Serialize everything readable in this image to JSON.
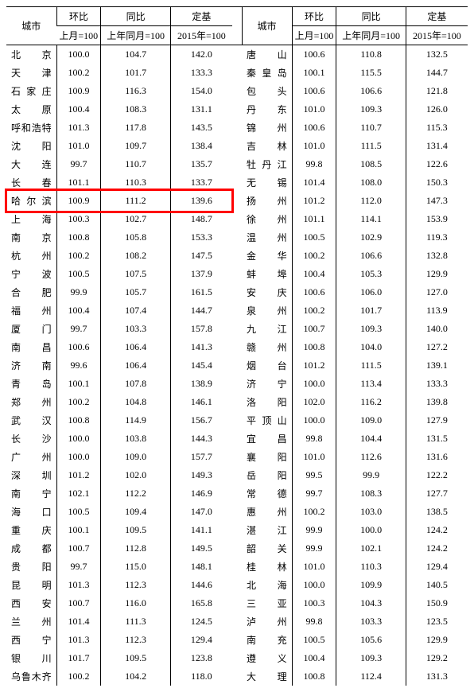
{
  "headers": {
    "city": "城市",
    "mom": "环比",
    "yoy": "同比",
    "base": "定基",
    "mom_sub": "上月=100",
    "yoy_sub": "上年同月=100",
    "base_sub": "2015年=100"
  },
  "left": [
    {
      "city": "北　京",
      "mom": "100.0",
      "yoy": "104.7",
      "base": "142.0"
    },
    {
      "city": "天　津",
      "mom": "100.2",
      "yoy": "101.7",
      "base": "133.3"
    },
    {
      "city": "石家庄",
      "mom": "100.9",
      "yoy": "116.3",
      "base": "154.0"
    },
    {
      "city": "太　原",
      "mom": "100.4",
      "yoy": "108.3",
      "base": "131.1"
    },
    {
      "city": "呼和浩特",
      "mom": "101.3",
      "yoy": "117.8",
      "base": "143.5"
    },
    {
      "city": "沈　阳",
      "mom": "101.0",
      "yoy": "109.7",
      "base": "138.4"
    },
    {
      "city": "大　连",
      "mom": "99.7",
      "yoy": "110.7",
      "base": "135.7"
    },
    {
      "city": "长　春",
      "mom": "101.1",
      "yoy": "110.3",
      "base": "133.7"
    },
    {
      "city": "哈尔滨",
      "mom": "100.9",
      "yoy": "111.2",
      "base": "139.6",
      "hl": true
    },
    {
      "city": "上　海",
      "mom": "100.3",
      "yoy": "102.7",
      "base": "148.7"
    },
    {
      "city": "南　京",
      "mom": "100.8",
      "yoy": "105.8",
      "base": "153.3"
    },
    {
      "city": "杭　州",
      "mom": "100.2",
      "yoy": "108.2",
      "base": "147.5"
    },
    {
      "city": "宁　波",
      "mom": "100.5",
      "yoy": "107.5",
      "base": "137.9"
    },
    {
      "city": "合　肥",
      "mom": "99.9",
      "yoy": "105.7",
      "base": "161.5"
    },
    {
      "city": "福　州",
      "mom": "100.4",
      "yoy": "107.4",
      "base": "144.7"
    },
    {
      "city": "厦　门",
      "mom": "99.7",
      "yoy": "103.3",
      "base": "157.8"
    },
    {
      "city": "南　昌",
      "mom": "100.6",
      "yoy": "106.4",
      "base": "141.3"
    },
    {
      "city": "济　南",
      "mom": "99.6",
      "yoy": "106.4",
      "base": "145.4"
    },
    {
      "city": "青　岛",
      "mom": "100.1",
      "yoy": "107.8",
      "base": "138.9"
    },
    {
      "city": "郑　州",
      "mom": "100.2",
      "yoy": "104.8",
      "base": "146.1"
    },
    {
      "city": "武　汉",
      "mom": "100.8",
      "yoy": "114.9",
      "base": "156.7"
    },
    {
      "city": "长　沙",
      "mom": "100.0",
      "yoy": "103.8",
      "base": "144.3"
    },
    {
      "city": "广　州",
      "mom": "100.0",
      "yoy": "109.0",
      "base": "157.7"
    },
    {
      "city": "深　圳",
      "mom": "101.2",
      "yoy": "102.0",
      "base": "149.3"
    },
    {
      "city": "南　宁",
      "mom": "102.1",
      "yoy": "112.2",
      "base": "146.9"
    },
    {
      "city": "海　口",
      "mom": "100.5",
      "yoy": "109.4",
      "base": "147.0"
    },
    {
      "city": "重　庆",
      "mom": "100.1",
      "yoy": "109.5",
      "base": "141.1"
    },
    {
      "city": "成　都",
      "mom": "100.7",
      "yoy": "112.8",
      "base": "149.5"
    },
    {
      "city": "贵　阳",
      "mom": "99.7",
      "yoy": "115.0",
      "base": "148.1"
    },
    {
      "city": "昆　明",
      "mom": "101.3",
      "yoy": "112.3",
      "base": "144.6"
    },
    {
      "city": "西　安",
      "mom": "100.7",
      "yoy": "116.0",
      "base": "165.8"
    },
    {
      "city": "兰　州",
      "mom": "101.4",
      "yoy": "111.3",
      "base": "124.5"
    },
    {
      "city": "西　宁",
      "mom": "101.3",
      "yoy": "112.3",
      "base": "129.4"
    },
    {
      "city": "银　川",
      "mom": "101.7",
      "yoy": "109.5",
      "base": "123.8"
    },
    {
      "city": "乌鲁木齐",
      "mom": "100.2",
      "yoy": "104.2",
      "base": "118.0"
    }
  ],
  "right": [
    {
      "city": "唐　山",
      "mom": "100.6",
      "yoy": "110.8",
      "base": "132.5"
    },
    {
      "city": "秦皇岛",
      "mom": "100.1",
      "yoy": "115.5",
      "base": "144.7"
    },
    {
      "city": "包　头",
      "mom": "100.6",
      "yoy": "106.6",
      "base": "121.8"
    },
    {
      "city": "丹　东",
      "mom": "101.0",
      "yoy": "109.3",
      "base": "126.0"
    },
    {
      "city": "锦　州",
      "mom": "100.6",
      "yoy": "110.7",
      "base": "115.3"
    },
    {
      "city": "吉　林",
      "mom": "101.0",
      "yoy": "111.5",
      "base": "131.4"
    },
    {
      "city": "牡丹江",
      "mom": "99.8",
      "yoy": "108.5",
      "base": "122.6"
    },
    {
      "city": "无　锡",
      "mom": "101.4",
      "yoy": "108.0",
      "base": "150.3"
    },
    {
      "city": "扬　州",
      "mom": "101.2",
      "yoy": "112.0",
      "base": "147.3"
    },
    {
      "city": "徐　州",
      "mom": "101.1",
      "yoy": "114.1",
      "base": "153.9"
    },
    {
      "city": "温　州",
      "mom": "100.5",
      "yoy": "102.9",
      "base": "119.3"
    },
    {
      "city": "金　华",
      "mom": "100.2",
      "yoy": "106.6",
      "base": "132.8"
    },
    {
      "city": "蚌　埠",
      "mom": "100.4",
      "yoy": "105.3",
      "base": "129.9"
    },
    {
      "city": "安　庆",
      "mom": "100.6",
      "yoy": "106.0",
      "base": "127.0"
    },
    {
      "city": "泉　州",
      "mom": "100.2",
      "yoy": "101.7",
      "base": "113.9"
    },
    {
      "city": "九　江",
      "mom": "100.7",
      "yoy": "109.3",
      "base": "140.0"
    },
    {
      "city": "赣　州",
      "mom": "100.8",
      "yoy": "104.0",
      "base": "127.2"
    },
    {
      "city": "烟　台",
      "mom": "101.2",
      "yoy": "111.5",
      "base": "139.1"
    },
    {
      "city": "济　宁",
      "mom": "100.0",
      "yoy": "113.4",
      "base": "133.3"
    },
    {
      "city": "洛　阳",
      "mom": "102.0",
      "yoy": "116.2",
      "base": "139.8"
    },
    {
      "city": "平顶山",
      "mom": "100.0",
      "yoy": "109.0",
      "base": "127.9"
    },
    {
      "city": "宜　昌",
      "mom": "99.8",
      "yoy": "104.4",
      "base": "131.5"
    },
    {
      "city": "襄　阳",
      "mom": "101.0",
      "yoy": "112.6",
      "base": "131.6"
    },
    {
      "city": "岳　阳",
      "mom": "99.5",
      "yoy": "99.9",
      "base": "122.2"
    },
    {
      "city": "常　德",
      "mom": "99.7",
      "yoy": "108.3",
      "base": "127.7"
    },
    {
      "city": "惠　州",
      "mom": "100.2",
      "yoy": "103.0",
      "base": "138.5"
    },
    {
      "city": "湛　江",
      "mom": "99.9",
      "yoy": "100.0",
      "base": "124.2"
    },
    {
      "city": "韶　关",
      "mom": "99.9",
      "yoy": "102.1",
      "base": "124.2"
    },
    {
      "city": "桂　林",
      "mom": "101.0",
      "yoy": "110.3",
      "base": "129.4"
    },
    {
      "city": "北　海",
      "mom": "100.0",
      "yoy": "109.9",
      "base": "140.5"
    },
    {
      "city": "三　亚",
      "mom": "100.3",
      "yoy": "104.3",
      "base": "150.9"
    },
    {
      "city": "泸　州",
      "mom": "99.8",
      "yoy": "103.3",
      "base": "123.5"
    },
    {
      "city": "南　充",
      "mom": "100.5",
      "yoy": "105.6",
      "base": "129.9"
    },
    {
      "city": "遵　义",
      "mom": "100.4",
      "yoy": "109.3",
      "base": "129.2"
    },
    {
      "city": "大　理",
      "mom": "100.8",
      "yoy": "112.4",
      "base": "131.3"
    }
  ],
  "style": {
    "highlight_color": "#ff0000",
    "font_size": 12,
    "text_color": "#000000",
    "background": "#ffffff"
  }
}
